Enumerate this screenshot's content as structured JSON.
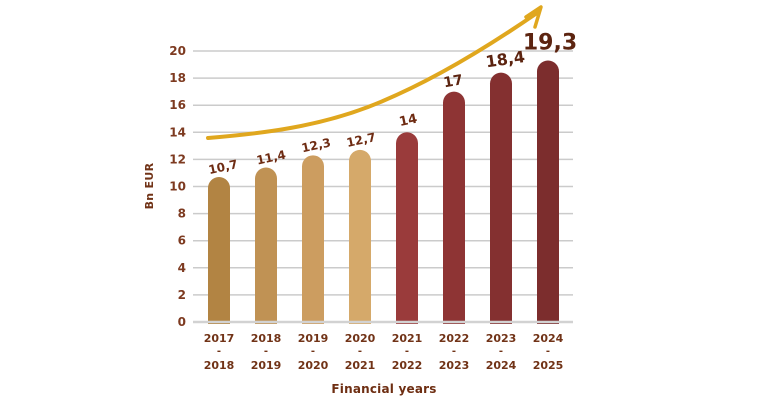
{
  "chart_data": {
    "type": "bar",
    "title": "",
    "ylabel": "Bn EUR",
    "xlabel": "Financial years",
    "ylim": [
      0,
      20
    ],
    "yticks": [
      0,
      2,
      4,
      6,
      8,
      10,
      12,
      14,
      16,
      18,
      20
    ],
    "grid": true,
    "category_separator": "-",
    "categories": [
      {
        "from": "2017",
        "to": "2018"
      },
      {
        "from": "2018",
        "to": "2019"
      },
      {
        "from": "2019",
        "to": "2020"
      },
      {
        "from": "2020",
        "to": "2021"
      },
      {
        "from": "2021",
        "to": "2022"
      },
      {
        "from": "2022",
        "to": "2023"
      },
      {
        "from": "2023",
        "to": "2024"
      },
      {
        "from": "2024",
        "to": "2025"
      }
    ],
    "values": [
      10.7,
      11.4,
      12.3,
      12.7,
      14,
      17,
      18.4,
      19.3
    ],
    "value_labels": [
      "10,7",
      "11,4",
      "12,3",
      "12,7",
      "14",
      "17",
      "18,4",
      "19,3"
    ],
    "bar_colors": [
      "#b28443",
      "#c09254",
      "#cc9d60",
      "#d5a96a",
      "#9a3b3b",
      "#8e3434",
      "#843030",
      "#7c2d2d"
    ],
    "trend_arrow": {
      "present": true,
      "direction": "up-right",
      "color": "#e0a71e"
    },
    "colors": {
      "background": "#ffffff",
      "grid": "#cbcbcb",
      "axis": "#d2d2d2",
      "ytick_text": "#7d3a20",
      "xtick_text": "#713317",
      "axis_title_text": "#713317",
      "value_text": "#6e2b12",
      "value_text_emphasis": "#5c2410"
    }
  }
}
